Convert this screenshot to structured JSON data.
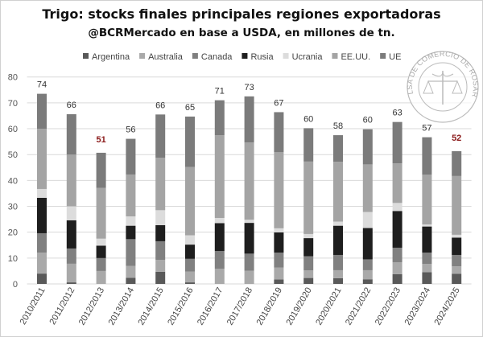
{
  "chart_data": {
    "type": "bar",
    "stacked": true,
    "title": "Trigo: stocks finales principales regiones exportadoras",
    "subtitle": "@BCRMercado en base a USDA, en millones de tn.",
    "xlabel": "",
    "ylabel": "",
    "ylim": [
      0,
      80
    ],
    "yticks": [
      0,
      10,
      20,
      30,
      40,
      50,
      60,
      70,
      80
    ],
    "grid": true,
    "legend_position": "top",
    "categories": [
      "2010/2011",
      "2011/2012",
      "2012/2013",
      "2013/2014",
      "2014/2015",
      "2015/2016",
      "2016/2017",
      "2017/2018",
      "2018/2019",
      "2019/2020",
      "2020/2021",
      "2021/2022",
      "2022/2023",
      "2023/2024",
      "2024/2025"
    ],
    "series": [
      {
        "name": "Argentina",
        "color": "#595959",
        "values": [
          4.0,
          0.6,
          0.0,
          2.4,
          4.7,
          0.6,
          0.0,
          0.0,
          1.7,
          2.3,
          2.2,
          1.8,
          3.8,
          4.5,
          3.9
        ]
      },
      {
        "name": "Australia",
        "color": "#a9a9a9",
        "values": [
          8.1,
          7.2,
          5.0,
          4.6,
          4.6,
          4.2,
          5.9,
          5.1,
          4.6,
          2.9,
          3.1,
          3.5,
          4.6,
          3.2,
          2.9
        ]
      },
      {
        "name": "Canada",
        "color": "#808080",
        "values": [
          7.5,
          5.9,
          5.0,
          10.3,
          7.2,
          4.9,
          6.8,
          6.6,
          5.8,
          5.5,
          5.9,
          4.2,
          5.6,
          4.4,
          4.4
        ]
      },
      {
        "name": "Rusia",
        "color": "#1e1e1e",
        "values": [
          13.7,
          10.9,
          4.8,
          5.2,
          6.2,
          5.5,
          10.8,
          11.9,
          7.8,
          7.0,
          11.3,
          12.1,
          14.2,
          10.1,
          6.7
        ]
      },
      {
        "name": "Ucrania",
        "color": "#dcdcdc",
        "values": [
          3.4,
          5.4,
          2.7,
          3.6,
          5.8,
          3.6,
          2.0,
          1.2,
          1.6,
          1.6,
          1.6,
          6.2,
          3.1,
          0.8,
          1.1
        ]
      },
      {
        "name": "EE.UU.",
        "color": "#a4a4a4",
        "values": [
          23.3,
          20.0,
          19.6,
          16.2,
          20.3,
          26.4,
          32.0,
          29.9,
          29.4,
          28.0,
          23.1,
          18.4,
          15.3,
          19.2,
          22.7
        ]
      },
      {
        "name": "UE",
        "color": "#7b7b7b",
        "values": [
          13.5,
          15.6,
          13.6,
          13.8,
          16.7,
          19.5,
          13.5,
          17.8,
          15.5,
          12.9,
          10.3,
          13.6,
          16.0,
          14.5,
          9.6
        ]
      }
    ],
    "totals": [
      "74",
      "66",
      "51",
      "56",
      "66",
      "65",
      "71",
      "73",
      "67",
      "60",
      "58",
      "60",
      "63",
      "57",
      "52"
    ],
    "highlight_totals": [
      "51",
      "52"
    ],
    "total_color": "#333333",
    "highlight_color": "#8b1a1a"
  },
  "watermark": {
    "text": "BOLSA DE COMERCIO DE ROSARIO"
  }
}
